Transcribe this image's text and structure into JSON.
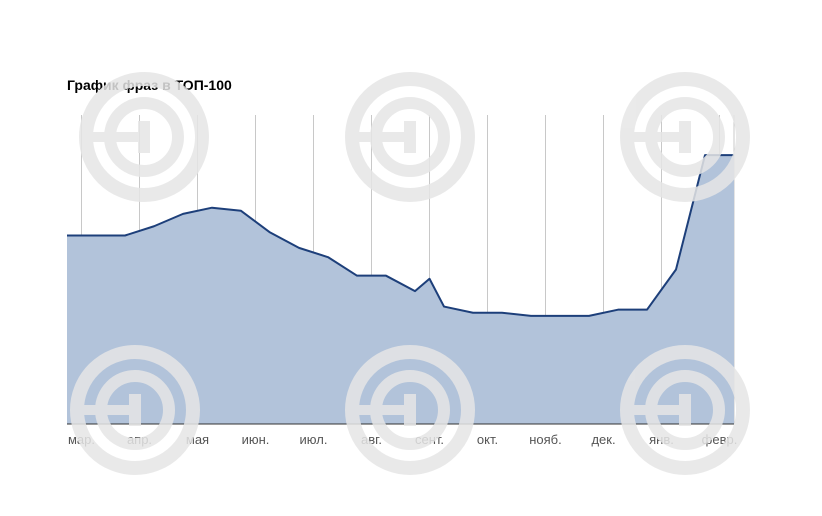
{
  "chart_data": {
    "type": "area",
    "title": "График фраз в ТОП-100",
    "xlabel": "",
    "ylabel": "",
    "categories": [
      "мар.",
      "апр.",
      "мая",
      "июн.",
      "июл.",
      "авг.",
      "сент.",
      "окт.",
      "нояб.",
      "дек.",
      "янв.",
      "февр."
    ],
    "x": [
      0,
      0.5,
      1,
      1.5,
      2,
      2.5,
      3,
      3.5,
      4,
      4.5,
      5,
      5.5,
      6,
      6.25,
      6.5,
      7,
      7.5,
      8,
      8.5,
      9,
      9.5,
      10,
      10.5,
      11,
      11.5
    ],
    "series": [
      {
        "values": [
          61,
          61,
          61,
          64,
          68,
          70,
          69,
          62,
          57,
          54,
          48,
          48,
          43,
          47,
          38,
          36,
          36,
          35,
          35,
          35,
          37,
          37,
          50,
          87,
          87
        ],
        "color": "#1d3f7a",
        "fill": "#b2c3da"
      }
    ],
    "ylim": [
      0,
      100
    ],
    "xlim": [
      0,
      11.5
    ],
    "grid": {
      "vertical": true,
      "horizontal": false
    },
    "legend": "none"
  },
  "watermark": {
    "symbol": "€",
    "color": "#e6e6e6"
  }
}
